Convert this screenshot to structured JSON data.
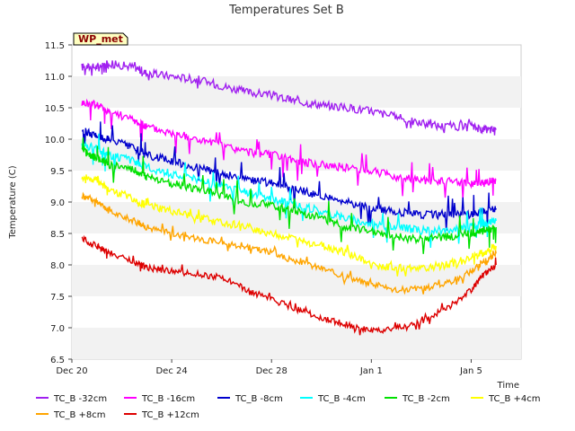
{
  "chart_data": {
    "type": "line",
    "title": "Temperatures Set B",
    "badge": "WP_met",
    "xlabel": "Time",
    "ylabel": "Temperature (C)",
    "ylim": [
      6.5,
      11.5
    ],
    "yticks": [
      "6.5",
      "7.0",
      "7.5",
      "8.0",
      "8.5",
      "9.0",
      "9.5",
      "10.0",
      "10.5",
      "11.0",
      "11.5"
    ],
    "xlim_days": [
      0,
      18
    ],
    "xticks": [
      {
        "label": "Dec 20",
        "day": 0
      },
      {
        "label": "Dec 24",
        "day": 4
      },
      {
        "label": "Dec 28",
        "day": 8
      },
      {
        "label": "Jan 1",
        "day": 12
      },
      {
        "label": "Jan 5",
        "day": 16
      }
    ],
    "grid": true,
    "legend_placement": "bottom",
    "series": [
      {
        "name": "TC_B -32cm",
        "color": "#a020f0",
        "points": [
          [
            0.4,
            11.15
          ],
          [
            1.0,
            11.15
          ],
          [
            1.5,
            11.2
          ],
          [
            2.5,
            11.15
          ],
          [
            3.0,
            11.05
          ],
          [
            4.0,
            11.0
          ],
          [
            5.0,
            10.95
          ],
          [
            6.0,
            10.85
          ],
          [
            7.0,
            10.75
          ],
          [
            8.0,
            10.7
          ],
          [
            9.0,
            10.6
          ],
          [
            10.0,
            10.55
          ],
          [
            11.0,
            10.5
          ],
          [
            12.0,
            10.45
          ],
          [
            13.0,
            10.35
          ],
          [
            14.0,
            10.25
          ],
          [
            15.0,
            10.2
          ],
          [
            16.0,
            10.2
          ],
          [
            16.5,
            10.15
          ],
          [
            17.0,
            10.15
          ]
        ]
      },
      {
        "name": "TC_B -16cm",
        "color": "#ff00ff",
        "points": [
          [
            0.4,
            10.58
          ],
          [
            1.0,
            10.55
          ],
          [
            1.5,
            10.45
          ],
          [
            2.5,
            10.3
          ],
          [
            3.0,
            10.2
          ],
          [
            4.0,
            10.1
          ],
          [
            5.0,
            10.0
          ],
          [
            6.0,
            9.9
          ],
          [
            7.0,
            9.8
          ],
          [
            8.0,
            9.75
          ],
          [
            9.0,
            9.65
          ],
          [
            10.0,
            9.6
          ],
          [
            11.0,
            9.55
          ],
          [
            12.0,
            9.5
          ],
          [
            13.0,
            9.4
          ],
          [
            14.0,
            9.35
          ],
          [
            15.0,
            9.33
          ],
          [
            16.0,
            9.3
          ],
          [
            16.5,
            9.3
          ],
          [
            17.0,
            9.35
          ]
        ]
      },
      {
        "name": "TC_B -8cm",
        "color": "#0000cd",
        "points": [
          [
            0.4,
            10.15
          ],
          [
            1.0,
            10.05
          ],
          [
            1.5,
            10.0
          ],
          [
            2.5,
            9.85
          ],
          [
            3.0,
            9.75
          ],
          [
            4.0,
            9.65
          ],
          [
            5.0,
            9.55
          ],
          [
            6.0,
            9.45
          ],
          [
            7.0,
            9.35
          ],
          [
            8.0,
            9.3
          ],
          [
            9.0,
            9.2
          ],
          [
            10.0,
            9.1
          ],
          [
            11.0,
            9.0
          ],
          [
            12.0,
            8.9
          ],
          [
            13.0,
            8.85
          ],
          [
            14.0,
            8.8
          ],
          [
            15.0,
            8.8
          ],
          [
            16.0,
            8.8
          ],
          [
            16.5,
            8.85
          ],
          [
            17.0,
            8.9
          ]
        ]
      },
      {
        "name": "TC_B -4cm",
        "color": "#00ffff",
        "points": [
          [
            0.4,
            9.92
          ],
          [
            1.0,
            9.85
          ],
          [
            1.5,
            9.75
          ],
          [
            2.5,
            9.65
          ],
          [
            3.0,
            9.55
          ],
          [
            4.0,
            9.45
          ],
          [
            5.0,
            9.35
          ],
          [
            6.0,
            9.25
          ],
          [
            7.0,
            9.15
          ],
          [
            8.0,
            9.05
          ],
          [
            9.0,
            8.95
          ],
          [
            10.0,
            8.85
          ],
          [
            11.0,
            8.75
          ],
          [
            12.0,
            8.65
          ],
          [
            13.0,
            8.6
          ],
          [
            14.0,
            8.55
          ],
          [
            15.0,
            8.55
          ],
          [
            16.0,
            8.6
          ],
          [
            16.5,
            8.65
          ],
          [
            17.0,
            8.7
          ]
        ]
      },
      {
        "name": "TC_B -2cm",
        "color": "#00e000",
        "points": [
          [
            0.4,
            9.82
          ],
          [
            1.0,
            9.7
          ],
          [
            1.5,
            9.6
          ],
          [
            2.5,
            9.5
          ],
          [
            3.0,
            9.4
          ],
          [
            4.0,
            9.3
          ],
          [
            5.0,
            9.2
          ],
          [
            6.0,
            9.1
          ],
          [
            7.0,
            9.0
          ],
          [
            8.0,
            8.95
          ],
          [
            9.0,
            8.85
          ],
          [
            10.0,
            8.75
          ],
          [
            11.0,
            8.6
          ],
          [
            12.0,
            8.55
          ],
          [
            13.0,
            8.45
          ],
          [
            14.0,
            8.4
          ],
          [
            15.0,
            8.45
          ],
          [
            16.0,
            8.5
          ],
          [
            16.5,
            8.55
          ],
          [
            17.0,
            8.6
          ]
        ]
      },
      {
        "name": "TC_B +4cm",
        "color": "#ffff00",
        "points": [
          [
            0.4,
            9.42
          ],
          [
            1.0,
            9.35
          ],
          [
            1.5,
            9.2
          ],
          [
            2.5,
            9.05
          ],
          [
            3.0,
            8.95
          ],
          [
            4.0,
            8.85
          ],
          [
            5.0,
            8.75
          ],
          [
            6.0,
            8.68
          ],
          [
            7.0,
            8.6
          ],
          [
            8.0,
            8.5
          ],
          [
            9.0,
            8.4
          ],
          [
            10.0,
            8.3
          ],
          [
            11.0,
            8.2
          ],
          [
            12.0,
            8.0
          ],
          [
            13.0,
            7.95
          ],
          [
            14.0,
            7.95
          ],
          [
            15.0,
            8.0
          ],
          [
            16.0,
            8.1
          ],
          [
            16.5,
            8.2
          ],
          [
            17.0,
            8.3
          ]
        ]
      },
      {
        "name": "TC_B +8cm",
        "color": "#ffa500",
        "points": [
          [
            0.4,
            9.1
          ],
          [
            1.0,
            9.0
          ],
          [
            1.5,
            8.85
          ],
          [
            2.5,
            8.7
          ],
          [
            3.0,
            8.6
          ],
          [
            4.0,
            8.5
          ],
          [
            5.0,
            8.42
          ],
          [
            6.0,
            8.35
          ],
          [
            7.0,
            8.28
          ],
          [
            8.0,
            8.2
          ],
          [
            9.0,
            8.05
          ],
          [
            10.0,
            7.95
          ],
          [
            11.0,
            7.8
          ],
          [
            12.0,
            7.7
          ],
          [
            13.0,
            7.6
          ],
          [
            14.0,
            7.62
          ],
          [
            15.0,
            7.7
          ],
          [
            16.0,
            7.9
          ],
          [
            16.5,
            8.05
          ],
          [
            17.0,
            8.18
          ]
        ]
      },
      {
        "name": "TC_B +12cm",
        "color": "#dd0000",
        "points": [
          [
            0.4,
            8.42
          ],
          [
            1.0,
            8.3
          ],
          [
            1.5,
            8.2
          ],
          [
            2.5,
            8.05
          ],
          [
            3.0,
            7.95
          ],
          [
            4.0,
            7.9
          ],
          [
            5.0,
            7.85
          ],
          [
            6.0,
            7.8
          ],
          [
            7.0,
            7.6
          ],
          [
            8.0,
            7.45
          ],
          [
            9.0,
            7.3
          ],
          [
            10.0,
            7.15
          ],
          [
            11.0,
            7.05
          ],
          [
            12.0,
            6.95
          ],
          [
            13.0,
            7.0
          ],
          [
            14.0,
            7.1
          ],
          [
            15.0,
            7.3
          ],
          [
            16.0,
            7.6
          ],
          [
            16.5,
            7.85
          ],
          [
            17.0,
            8.0
          ]
        ]
      }
    ]
  }
}
